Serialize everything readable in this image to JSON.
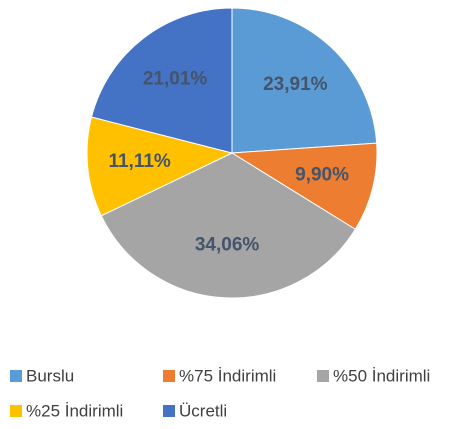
{
  "chart_data": {
    "type": "pie",
    "categories": [
      "Burslu",
      "%75 İndirimli",
      "%50 İndirimli",
      "%25 İndirimli",
      "Ücretli"
    ],
    "values": [
      23.91,
      9.9,
      34.06,
      11.11,
      21.01
    ],
    "value_labels": [
      "23,91%",
      "9,90%",
      "34,06%",
      "11,11%",
      "21,01%"
    ],
    "colors": [
      "#5b9bd5",
      "#ed7d31",
      "#a5a5a5",
      "#ffc000",
      "#4472c4"
    ]
  }
}
